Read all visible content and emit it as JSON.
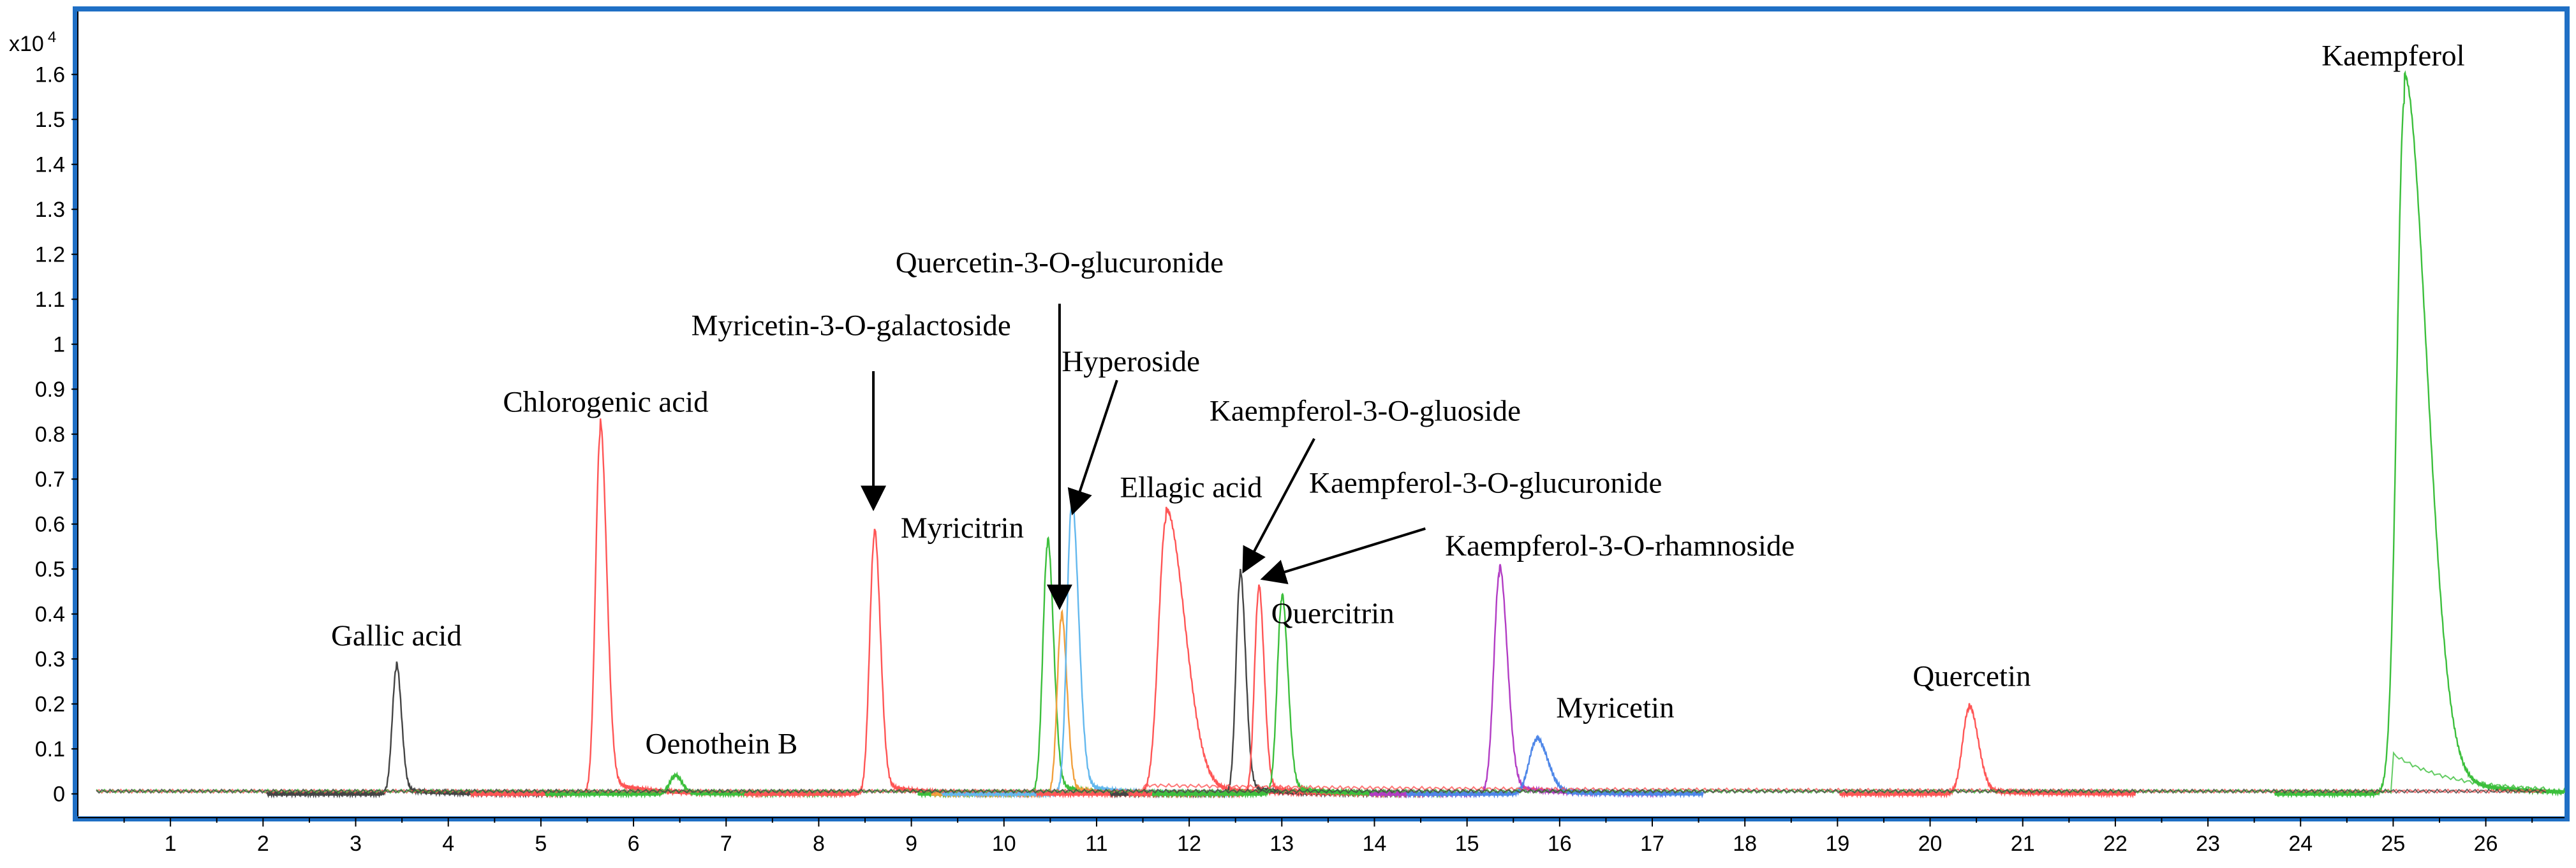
{
  "chart_data": {
    "type": "line",
    "title": "",
    "xlabel": "",
    "ylabel": "",
    "y_multiplier": "x10",
    "y_multiplier_exp": "4",
    "xlim": [
      0,
      26.85
    ],
    "ylim": [
      -0.05,
      1.74
    ],
    "x_ticks": [
      "1",
      "2",
      "3",
      "4",
      "5",
      "6",
      "7",
      "8",
      "9",
      "10",
      "11",
      "12",
      "13",
      "14",
      "15",
      "16",
      "17",
      "18",
      "19",
      "20",
      "21",
      "22",
      "23",
      "24",
      "25",
      "26"
    ],
    "y_ticks": [
      "0",
      "0.1",
      "0.2",
      "0.3",
      "0.4",
      "0.5",
      "0.6",
      "0.7",
      "0.8",
      "0.9",
      "1",
      "1.1",
      "1.2",
      "1.3",
      "1.4",
      "1.5",
      "1.6"
    ],
    "colors": {
      "frame": "#1f6fc5",
      "black": "#444444",
      "red": "#ff5555",
      "green": "#3cbf3c",
      "blue": "#4d86e8",
      "purple": "#b23cc4",
      "orange": "#f2a03c",
      "lightblue": "#63b8ee"
    },
    "series": [
      {
        "name": "Gallic acid",
        "color": "black",
        "peaks": [
          {
            "x": 3.44,
            "height": 0.28,
            "width": 0.045,
            "tail": 1.2
          }
        ]
      },
      {
        "name": "Chlorogenic acid",
        "color": "red",
        "peaks": [
          {
            "x": 5.64,
            "height": 0.8,
            "width": 0.05,
            "tail": 1.4
          }
        ]
      },
      {
        "name": "Oenothein B",
        "color": "green",
        "peaks": [
          {
            "x": 6.45,
            "height": 0.04,
            "width": 0.06,
            "tail": 1.2
          }
        ]
      },
      {
        "name": "Myricetin-3-O-galactoside",
        "color": "red",
        "peaks": [
          {
            "x": 8.6,
            "height": 0.57,
            "width": 0.05,
            "tail": 1.3
          }
        ]
      },
      {
        "name": "Myricitrin",
        "color": "green",
        "peaks": [
          {
            "x": 10.47,
            "height": 0.55,
            "width": 0.05,
            "tail": 1.3
          }
        ]
      },
      {
        "name": "Quercetin-3-O-glucuronide",
        "color": "orange",
        "peaks": [
          {
            "x": 10.62,
            "height": 0.39,
            "width": 0.045,
            "tail": 1.3
          }
        ]
      },
      {
        "name": "Hyperoside",
        "color": "lightblue",
        "peaks": [
          {
            "x": 10.73,
            "height": 0.64,
            "width": 0.05,
            "tail": 1.5
          }
        ]
      },
      {
        "name": "Ellagic acid",
        "color": "red",
        "peaks": [
          {
            "x": 11.75,
            "height": 0.61,
            "width": 0.08,
            "tail": 2.5
          }
        ]
      },
      {
        "name": "Kaempferol-3-O-gluoside",
        "color": "black",
        "peaks": [
          {
            "x": 12.55,
            "height": 0.48,
            "width": 0.045,
            "tail": 1.3
          }
        ]
      },
      {
        "name": "Kaempferol-3-O-glucuronide",
        "color": "red",
        "peaks": [
          {
            "x": 12.75,
            "height": 0.45,
            "width": 0.045,
            "tail": 1.3
          }
        ]
      },
      {
        "name": "Quercitrin",
        "color": "green",
        "peaks": [
          {
            "x": 13.0,
            "height": 0.43,
            "width": 0.05,
            "tail": 1.3
          }
        ]
      },
      {
        "name": "Kaempferol-3-O-rhamnoside",
        "color": "purple",
        "peaks": [
          {
            "x": 15.35,
            "height": 0.49,
            "width": 0.06,
            "tail": 1.4
          }
        ]
      },
      {
        "name": "Myricetin",
        "color": "blue",
        "peaks": [
          {
            "x": 15.75,
            "height": 0.12,
            "width": 0.08,
            "tail": 1.5
          }
        ]
      },
      {
        "name": "Quercetin",
        "color": "red",
        "peaks": [
          {
            "x": 20.42,
            "height": 0.19,
            "width": 0.07,
            "tail": 1.4
          }
        ]
      },
      {
        "name": "Kaempferol",
        "color": "green",
        "peaks": [
          {
            "x": 25.12,
            "height": 1.54,
            "width": 0.08,
            "tail": 3.0
          }
        ]
      }
    ],
    "annotations": [
      {
        "text": "Gallic acid",
        "x": 3.44,
        "y": 0.33,
        "anchor": "middle"
      },
      {
        "text": "Chlorogenic acid",
        "x": 5.7,
        "y": 0.85,
        "anchor": "middle"
      },
      {
        "text": "Oenothein B",
        "x": 6.95,
        "y": 0.09,
        "anchor": "middle"
      },
      {
        "text": "Myricetin-3-O-galactoside",
        "x": 8.35,
        "y": 1.02,
        "anchor": "middle"
      },
      {
        "text": "Quercetin-3-O-glucuronide",
        "x": 10.6,
        "y": 1.16,
        "anchor": "middle"
      },
      {
        "text": "Hyperoside",
        "x": 11.37,
        "y": 0.94,
        "anchor": "middle"
      },
      {
        "text": "Myricitrin",
        "x": 9.55,
        "y": 0.57,
        "anchor": "middle"
      },
      {
        "text": "Ellagic acid",
        "x": 12.02,
        "y": 0.66,
        "anchor": "middle"
      },
      {
        "text": "Kaempferol-3-O-gluoside",
        "x": 13.9,
        "y": 0.83,
        "anchor": "middle"
      },
      {
        "text": "Kaempferol-3-O-glucuronide",
        "x": 15.2,
        "y": 0.67,
        "anchor": "middle"
      },
      {
        "text": "Kaempferol-3-O-rhamnoside",
        "x": 16.65,
        "y": 0.53,
        "anchor": "middle"
      },
      {
        "text": "Quercitrin",
        "x": 13.55,
        "y": 0.38,
        "anchor": "middle"
      },
      {
        "text": "Myricetin",
        "x": 16.6,
        "y": 0.17,
        "anchor": "middle"
      },
      {
        "text": "Quercetin",
        "x": 20.45,
        "y": 0.24,
        "anchor": "middle"
      },
      {
        "text": "Kaempferol",
        "x": 25.0,
        "y": 1.62,
        "anchor": "middle"
      }
    ],
    "arrows": [
      {
        "name": "myricetin-galactoside",
        "from": [
          8.59,
          0.94
        ],
        "to": [
          8.59,
          0.64
        ]
      },
      {
        "name": "quercetin-glucuronide",
        "from": [
          10.6,
          1.09
        ],
        "to": [
          10.6,
          0.42
        ]
      },
      {
        "name": "hyperoside",
        "from": [
          11.22,
          0.92
        ],
        "to": [
          10.75,
          0.63
        ]
      },
      {
        "name": "kaempferol-gluoside",
        "from": [
          13.35,
          0.79
        ],
        "to": [
          12.6,
          0.5
        ]
      },
      {
        "name": "kaempferol-glucuronide",
        "from": [
          14.55,
          0.59
        ],
        "to": [
          12.82,
          0.48
        ]
      }
    ]
  }
}
